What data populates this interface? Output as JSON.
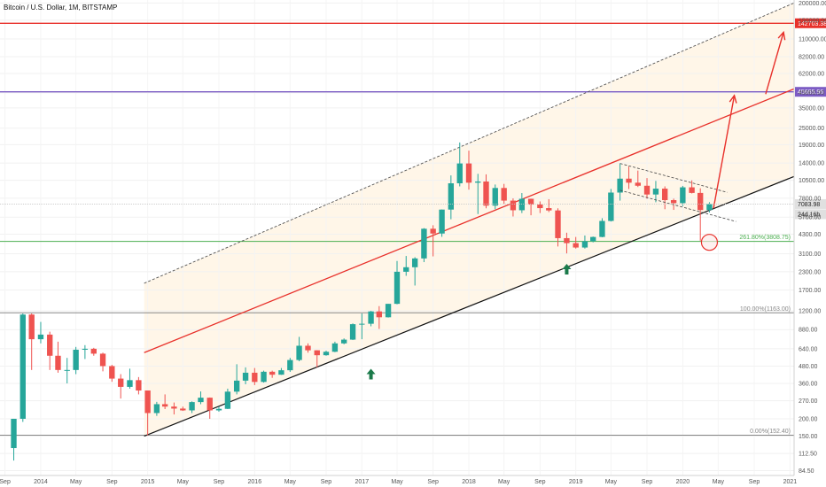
{
  "chart_data": {
    "type": "candlestick",
    "title": "Bitcoin / U.S. Dollar, 1M, BITSTAMP",
    "y_scale": "log",
    "ylim": [
      78,
      210000
    ],
    "xlim": [
      "2013-08-15",
      "2021-01-15"
    ],
    "y_ticks": [
      "84.50",
      "112.50",
      "150.00",
      "200.00",
      "270.00",
      "360.00",
      "480.00",
      "640.00",
      "880.00",
      "1200.00",
      "1700.00",
      "2300.00",
      "3100.00",
      "4300.00",
      "5700.00",
      "7800.00",
      "10500.00",
      "14000.00",
      "19000.00",
      "25000.00",
      "35000.00",
      "45000.00",
      "62000.00",
      "82000.00",
      "110000.00",
      "150000.00",
      "200000.00"
    ],
    "x_ticks": [
      {
        "label": "Sep",
        "date": "2013-09-01"
      },
      {
        "label": "2014",
        "date": "2014-01-01"
      },
      {
        "label": "May",
        "date": "2014-05-01"
      },
      {
        "label": "Sep",
        "date": "2014-09-01"
      },
      {
        "label": "2015",
        "date": "2015-01-01"
      },
      {
        "label": "May",
        "date": "2015-05-01"
      },
      {
        "label": "Sep",
        "date": "2015-09-01"
      },
      {
        "label": "2016",
        "date": "2016-01-01"
      },
      {
        "label": "May",
        "date": "2016-05-01"
      },
      {
        "label": "Sep",
        "date": "2016-09-01"
      },
      {
        "label": "2017",
        "date": "2017-01-01"
      },
      {
        "label": "May",
        "date": "2017-05-01"
      },
      {
        "label": "Sep",
        "date": "2017-09-01"
      },
      {
        "label": "2018",
        "date": "2018-01-01"
      },
      {
        "label": "May",
        "date": "2018-05-01"
      },
      {
        "label": "Sep",
        "date": "2018-09-01"
      },
      {
        "label": "2019",
        "date": "2019-01-01"
      },
      {
        "label": "May",
        "date": "2019-05-01"
      },
      {
        "label": "Sep",
        "date": "2019-09-01"
      },
      {
        "label": "2020",
        "date": "2020-01-01"
      },
      {
        "label": "May",
        "date": "2020-05-01"
      },
      {
        "label": "Sep",
        "date": "2020-09-01"
      },
      {
        "label": "2021",
        "date": "2021-01-01"
      }
    ],
    "candles": [
      {
        "date": "2013-10-01",
        "open": 123,
        "high": 200,
        "low": 100,
        "close": 200
      },
      {
        "date": "2013-11-01",
        "open": 200,
        "high": 1150,
        "low": 190,
        "close": 1130
      },
      {
        "date": "2013-12-01",
        "open": 1130,
        "high": 1150,
        "low": 450,
        "close": 750
      },
      {
        "date": "2014-01-01",
        "open": 750,
        "high": 1000,
        "low": 700,
        "close": 810
      },
      {
        "date": "2014-02-01",
        "open": 810,
        "high": 850,
        "low": 450,
        "close": 570
      },
      {
        "date": "2014-03-01",
        "open": 570,
        "high": 720,
        "low": 430,
        "close": 450
      },
      {
        "date": "2014-04-01",
        "open": 450,
        "high": 550,
        "low": 360,
        "close": 450
      },
      {
        "date": "2014-05-01",
        "open": 450,
        "high": 660,
        "low": 420,
        "close": 630
      },
      {
        "date": "2014-06-01",
        "open": 630,
        "high": 680,
        "low": 540,
        "close": 640
      },
      {
        "date": "2014-07-01",
        "open": 640,
        "high": 650,
        "low": 570,
        "close": 590
      },
      {
        "date": "2014-08-01",
        "open": 590,
        "high": 600,
        "low": 440,
        "close": 480
      },
      {
        "date": "2014-09-01",
        "open": 480,
        "high": 490,
        "low": 370,
        "close": 390
      },
      {
        "date": "2014-10-01",
        "open": 390,
        "high": 420,
        "low": 280,
        "close": 340
      },
      {
        "date": "2014-11-01",
        "open": 340,
        "high": 460,
        "low": 330,
        "close": 380
      },
      {
        "date": "2014-12-01",
        "open": 380,
        "high": 400,
        "low": 300,
        "close": 320
      },
      {
        "date": "2015-01-01",
        "open": 320,
        "high": 320,
        "low": 152,
        "close": 220
      },
      {
        "date": "2015-02-01",
        "open": 220,
        "high": 265,
        "low": 210,
        "close": 255
      },
      {
        "date": "2015-03-01",
        "open": 255,
        "high": 300,
        "low": 235,
        "close": 245
      },
      {
        "date": "2015-04-01",
        "open": 245,
        "high": 262,
        "low": 215,
        "close": 237
      },
      {
        "date": "2015-05-01",
        "open": 237,
        "high": 245,
        "low": 228,
        "close": 230
      },
      {
        "date": "2015-06-01",
        "open": 230,
        "high": 267,
        "low": 220,
        "close": 264
      },
      {
        "date": "2015-07-01",
        "open": 264,
        "high": 315,
        "low": 255,
        "close": 284
      },
      {
        "date": "2015-08-01",
        "open": 284,
        "high": 285,
        "low": 200,
        "close": 230
      },
      {
        "date": "2015-09-01",
        "open": 230,
        "high": 245,
        "low": 225,
        "close": 236
      },
      {
        "date": "2015-10-01",
        "open": 236,
        "high": 330,
        "low": 235,
        "close": 314
      },
      {
        "date": "2015-11-01",
        "open": 314,
        "high": 495,
        "low": 300,
        "close": 377
      },
      {
        "date": "2015-12-01",
        "open": 377,
        "high": 470,
        "low": 355,
        "close": 430
      },
      {
        "date": "2016-01-01",
        "open": 430,
        "high": 465,
        "low": 350,
        "close": 369
      },
      {
        "date": "2016-02-01",
        "open": 369,
        "high": 445,
        "low": 365,
        "close": 437
      },
      {
        "date": "2016-03-01",
        "open": 437,
        "high": 445,
        "low": 395,
        "close": 416
      },
      {
        "date": "2016-04-01",
        "open": 416,
        "high": 465,
        "low": 415,
        "close": 448
      },
      {
        "date": "2016-05-01",
        "open": 448,
        "high": 550,
        "low": 436,
        "close": 531
      },
      {
        "date": "2016-06-01",
        "open": 531,
        "high": 780,
        "low": 520,
        "close": 673
      },
      {
        "date": "2016-07-01",
        "open": 673,
        "high": 700,
        "low": 600,
        "close": 624
      },
      {
        "date": "2016-08-01",
        "open": 624,
        "high": 625,
        "low": 470,
        "close": 575
      },
      {
        "date": "2016-09-01",
        "open": 575,
        "high": 620,
        "low": 570,
        "close": 609
      },
      {
        "date": "2016-10-01",
        "open": 609,
        "high": 720,
        "low": 605,
        "close": 700
      },
      {
        "date": "2016-11-01",
        "open": 700,
        "high": 760,
        "low": 690,
        "close": 745
      },
      {
        "date": "2016-12-01",
        "open": 745,
        "high": 975,
        "low": 740,
        "close": 963
      },
      {
        "date": "2017-01-01",
        "open": 963,
        "high": 1150,
        "low": 750,
        "close": 970
      },
      {
        "date": "2017-02-01",
        "open": 970,
        "high": 1200,
        "low": 930,
        "close": 1190
      },
      {
        "date": "2017-03-01",
        "open": 1190,
        "high": 1300,
        "low": 890,
        "close": 1080
      },
      {
        "date": "2017-04-01",
        "open": 1080,
        "high": 1350,
        "low": 1075,
        "close": 1350
      },
      {
        "date": "2017-05-01",
        "open": 1350,
        "high": 2750,
        "low": 1340,
        "close": 2300
      },
      {
        "date": "2017-06-01",
        "open": 2300,
        "high": 2990,
        "low": 2150,
        "close": 2480
      },
      {
        "date": "2017-07-01",
        "open": 2480,
        "high": 2930,
        "low": 1830,
        "close": 2870
      },
      {
        "date": "2017-08-01",
        "open": 2870,
        "high": 4750,
        "low": 2700,
        "close": 4700
      },
      {
        "date": "2017-09-01",
        "open": 4700,
        "high": 4980,
        "low": 2970,
        "close": 4340
      },
      {
        "date": "2017-10-01",
        "open": 4340,
        "high": 6470,
        "low": 4110,
        "close": 6460
      },
      {
        "date": "2017-11-01",
        "open": 6460,
        "high": 11400,
        "low": 5500,
        "close": 10000
      },
      {
        "date": "2017-12-01",
        "open": 10000,
        "high": 19700,
        "low": 9500,
        "close": 13900
      },
      {
        "date": "2018-01-01",
        "open": 13900,
        "high": 17200,
        "low": 9000,
        "close": 10100
      },
      {
        "date": "2018-02-01",
        "open": 10100,
        "high": 11700,
        "low": 6000,
        "close": 10300
      },
      {
        "date": "2018-03-01",
        "open": 10300,
        "high": 11600,
        "low": 6600,
        "close": 6900
      },
      {
        "date": "2018-04-01",
        "open": 6900,
        "high": 9800,
        "low": 6500,
        "close": 9250
      },
      {
        "date": "2018-05-01",
        "open": 9250,
        "high": 9900,
        "low": 7040,
        "close": 7500
      },
      {
        "date": "2018-06-01",
        "open": 7500,
        "high": 7780,
        "low": 5760,
        "close": 6390
      },
      {
        "date": "2018-07-01",
        "open": 6390,
        "high": 8500,
        "low": 6100,
        "close": 7730
      },
      {
        "date": "2018-08-01",
        "open": 7730,
        "high": 7750,
        "low": 5880,
        "close": 7020
      },
      {
        "date": "2018-09-01",
        "open": 7020,
        "high": 7400,
        "low": 6100,
        "close": 6620
      },
      {
        "date": "2018-10-01",
        "open": 6620,
        "high": 7680,
        "low": 6200,
        "close": 6370
      },
      {
        "date": "2018-11-01",
        "open": 6370,
        "high": 6600,
        "low": 3500,
        "close": 4020
      },
      {
        "date": "2018-12-01",
        "open": 4020,
        "high": 4400,
        "low": 3120,
        "close": 3700
      },
      {
        "date": "2019-01-01",
        "open": 3700,
        "high": 4100,
        "low": 3380,
        "close": 3440
      },
      {
        "date": "2019-02-01",
        "open": 3440,
        "high": 4200,
        "low": 3380,
        "close": 3820
      },
      {
        "date": "2019-03-01",
        "open": 3820,
        "high": 4130,
        "low": 3750,
        "close": 4100
      },
      {
        "date": "2019-04-01",
        "open": 4100,
        "high": 5600,
        "low": 4080,
        "close": 5350
      },
      {
        "date": "2019-05-01",
        "open": 5350,
        "high": 9100,
        "low": 5300,
        "close": 8570
      },
      {
        "date": "2019-06-01",
        "open": 8570,
        "high": 13900,
        "low": 7500,
        "close": 10800
      },
      {
        "date": "2019-07-01",
        "open": 10800,
        "high": 13200,
        "low": 9100,
        "close": 10100
      },
      {
        "date": "2019-08-01",
        "open": 10100,
        "high": 12350,
        "low": 9400,
        "close": 9600
      },
      {
        "date": "2019-09-01",
        "open": 9600,
        "high": 10900,
        "low": 7750,
        "close": 8300
      },
      {
        "date": "2019-10-01",
        "open": 8300,
        "high": 10400,
        "low": 7300,
        "close": 9150
      },
      {
        "date": "2019-11-01",
        "open": 9150,
        "high": 9500,
        "low": 6500,
        "close": 7560
      },
      {
        "date": "2019-12-01",
        "open": 7560,
        "high": 7750,
        "low": 6430,
        "close": 7190
      },
      {
        "date": "2020-01-01",
        "open": 7190,
        "high": 9580,
        "low": 6860,
        "close": 9350
      },
      {
        "date": "2020-02-01",
        "open": 9350,
        "high": 10500,
        "low": 8450,
        "close": 8520
      },
      {
        "date": "2020-03-01",
        "open": 8520,
        "high": 9200,
        "low": 3850,
        "close": 6410
      },
      {
        "date": "2020-04-01",
        "open": 6410,
        "high": 7300,
        "low": 6150,
        "close": 7083.98
      }
    ],
    "annotations": {
      "horizontal_levels": [
        {
          "label": "142703.38",
          "value": 142703.38,
          "color": "#e8302a",
          "badge": true
        },
        {
          "label": "45685.96",
          "value": 45685.96,
          "color": "#7c5cc4",
          "badge": true
        },
        {
          "label": "261.80%(3808.75)",
          "value": 3808.75,
          "color": "#4caf50"
        },
        {
          "label": "100.00%(1163.00)",
          "value": 1163,
          "color": "#888888"
        },
        {
          "label": "0.00%(152.40)",
          "value": 152.4,
          "color": "#888888"
        }
      ],
      "current_price": {
        "label": "7083.98",
        "value": 7083.98,
        "countdown": "24d 16h"
      },
      "channel": {
        "support_start": {
          "date": "2014-12-20",
          "value": 150
        },
        "support_end": {
          "date": "2021-01-15",
          "value": 11200
        },
        "mid_start": {
          "date": "2014-12-20",
          "value": 600
        },
        "mid_end": {
          "date": "2021-01-15",
          "value": 48000
        },
        "top_start": {
          "date": "2014-12-20",
          "value": 1900
        },
        "top_end": {
          "date": "2021-01-15",
          "value": 200000
        }
      },
      "wedge": [
        {
          "from": {
            "date": "2019-06-01",
            "value": 13900
          },
          "to": {
            "date": "2020-06-01",
            "value": 8600
          }
        },
        {
          "from": {
            "date": "2019-06-01",
            "value": 8900
          },
          "to": {
            "date": "2020-07-01",
            "value": 5300
          }
        }
      ],
      "projection_path": [
        {
          "date": "2020-04-15",
          "value": 6600
        },
        {
          "date": "2020-06-25",
          "value": 43000
        },
        {
          "date": "2020-10-10",
          "value": 44000
        },
        {
          "date": "2020-12-10",
          "value": 123000
        }
      ],
      "arrows_up": [
        {
          "date": "2017-02-01",
          "value": 420
        },
        {
          "date": "2018-12-01",
          "value": 2400
        }
      ],
      "circle_marker": {
        "date": "2020-04-01",
        "value": 3750
      }
    },
    "colors": {
      "bull": "#26a69a",
      "bear": "#ef5350",
      "channel_fill": "#fff3e0",
      "channel_mid": "#e8302a",
      "support": "#111111",
      "top": "#555555",
      "projection": "#e8302a",
      "arrow_marker": "#1b7a4a"
    },
    "grid": true
  }
}
